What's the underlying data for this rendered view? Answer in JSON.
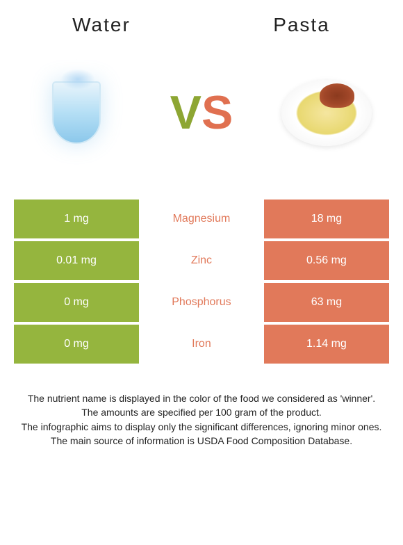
{
  "header": {
    "left_title": "Water",
    "right_title": "Pasta"
  },
  "vs": {
    "v_color": "#8da633",
    "s_color": "#e07050"
  },
  "colors": {
    "water_bg": "#95b53e",
    "pasta_bg": "#e1795a",
    "nutrient_text": "#e1795a"
  },
  "rows": [
    {
      "left": "1 mg",
      "mid": "Magnesium",
      "right": "18 mg"
    },
    {
      "left": "0.01 mg",
      "mid": "Zinc",
      "right": "0.56 mg"
    },
    {
      "left": "0 mg",
      "mid": "Phosphorus",
      "right": "63 mg"
    },
    {
      "left": "0 mg",
      "mid": "Iron",
      "right": "1.14 mg"
    }
  ],
  "footer": {
    "line1": "The nutrient name is displayed in the color of the food we considered as 'winner'.",
    "line2": "The amounts are specified per 100 gram of the product.",
    "line3": "The infographic aims to display only the significant differences, ignoring minor ones.",
    "line4": "The main source of information is USDA Food Composition Database."
  }
}
